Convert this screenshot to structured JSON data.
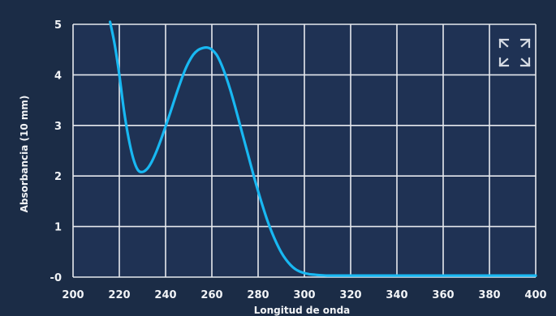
{
  "chart_data": {
    "type": "line",
    "xlabel": "Longitud de onda",
    "ylabel": "Absorbancia (10 mm)",
    "xlim": [
      200,
      400
    ],
    "ylim": [
      0,
      5
    ],
    "x_ticks": [
      "200",
      "220",
      "240",
      "260",
      "280",
      "300",
      "320",
      "340",
      "360",
      "380",
      "400"
    ],
    "y_ticks": [
      "-0",
      "1",
      "2",
      "3",
      "4",
      "5"
    ],
    "y_tick_values": [
      0,
      1,
      2,
      3,
      4,
      5
    ],
    "grid": true,
    "series": [
      {
        "color": "#18b8f2",
        "x": [
          216,
          218,
          220,
          222,
          224,
          226,
          228,
          230,
          232,
          234,
          236,
          238,
          240,
          242,
          244,
          246,
          248,
          250,
          252,
          254,
          256,
          258,
          260,
          262,
          264,
          266,
          268,
          270,
          272,
          274,
          276,
          278,
          280,
          282,
          284,
          286,
          288,
          290,
          292,
          294,
          296,
          298,
          300,
          302,
          304,
          306,
          308,
          310,
          315,
          320,
          330,
          340,
          360,
          380,
          400
        ],
        "y": [
          5.05,
          4.6,
          4.0,
          3.3,
          2.75,
          2.35,
          2.12,
          2.08,
          2.14,
          2.28,
          2.48,
          2.72,
          2.98,
          3.25,
          3.53,
          3.8,
          4.05,
          4.25,
          4.4,
          4.49,
          4.53,
          4.54,
          4.5,
          4.4,
          4.22,
          3.98,
          3.7,
          3.38,
          3.04,
          2.7,
          2.36,
          2.02,
          1.7,
          1.4,
          1.12,
          0.88,
          0.67,
          0.49,
          0.35,
          0.24,
          0.16,
          0.11,
          0.08,
          0.06,
          0.05,
          0.04,
          0.035,
          0.03,
          0.03,
          0.03,
          0.03,
          0.03,
          0.03,
          0.03,
          0.03
        ]
      }
    ]
  },
  "toolbar": {
    "expand_icon": "expand-arrows-icon"
  }
}
